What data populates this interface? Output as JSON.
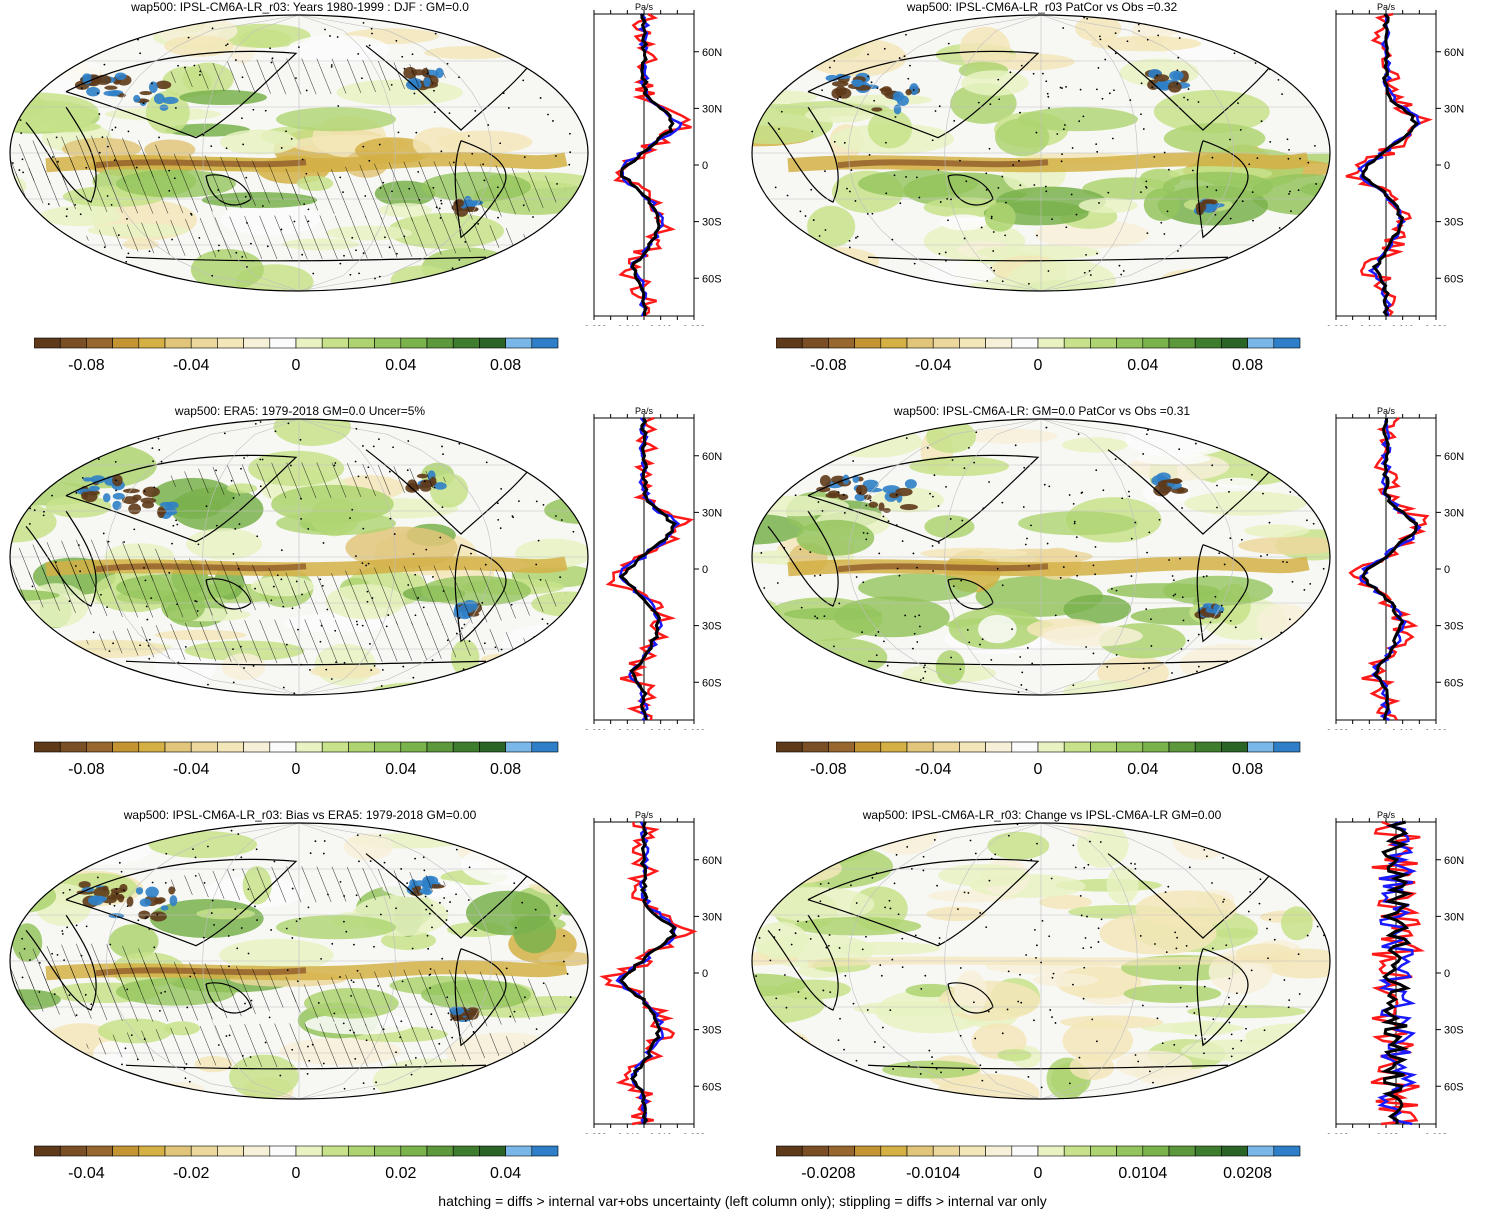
{
  "palette": [
    "#5e3a1a",
    "#7a4f25",
    "#98662f",
    "#c39431",
    "#d4b045",
    "#e0c57a",
    "#ecd89c",
    "#f3e6b8",
    "#f7f0d8",
    "#fbfbfb",
    "#e8f2c2",
    "#c7e28a",
    "#aed471",
    "#94c45d",
    "#7ab24c",
    "#5d983c",
    "#3f7d2e",
    "#2b6427",
    "#79b7e9",
    "#2f7fc8"
  ],
  "footer": "hatching = diffs > internal var+obs uncertainty (left column only); stippling = diffs > internal var only",
  "profile_common": {
    "units": "Pa/s",
    "lat_ticks": [
      "60N",
      "30N",
      "0",
      "30S",
      "60S"
    ]
  },
  "chart_data": [
    {
      "type": "heatmap",
      "id": "p1",
      "title": "wap500: IPSL-CM6A-LR_r03: Years 1980-1999 : DJF : GM=0.0",
      "colorbar_labels": [
        "-0.08",
        "-0.04",
        "0",
        "0.04",
        "0.08"
      ],
      "colorbar_range": [
        -0.1,
        0.1
      ],
      "hatching": true,
      "stippling": true,
      "profile": {
        "xlim": [
          -0.03,
          0.03
        ],
        "x_tick_labels": [
          "-0.030",
          "-0.010",
          "0.010",
          "0.030"
        ]
      }
    },
    {
      "type": "heatmap",
      "id": "p2",
      "title": "wap500: IPSL-CM6A-LR_r03 PatCor vs Obs =0.32",
      "colorbar_labels": [
        "-0.08",
        "-0.04",
        "0",
        "0.04",
        "0.08"
      ],
      "colorbar_range": [
        -0.1,
        0.1
      ],
      "hatching": false,
      "stippling": true,
      "profile": {
        "xlim": [
          -0.03,
          0.03
        ],
        "x_tick_labels": [
          "-0.030",
          "-0.010",
          "0.010",
          "0.030"
        ]
      }
    },
    {
      "type": "heatmap",
      "id": "p3",
      "title": "wap500: ERA5: 1979-2018 GM=0.0 Uncer=5%",
      "colorbar_labels": [
        "-0.08",
        "-0.04",
        "0",
        "0.04",
        "0.08"
      ],
      "colorbar_range": [
        -0.1,
        0.1
      ],
      "hatching": true,
      "stippling": true,
      "profile": {
        "xlim": [
          -0.03,
          0.03
        ],
        "x_tick_labels": [
          "-0.030",
          "-0.010",
          "0.010",
          "0.030"
        ]
      }
    },
    {
      "type": "heatmap",
      "id": "p4",
      "title": "wap500: IPSL-CM6A-LR: GM=0.0 PatCor vs Obs =0.31",
      "colorbar_labels": [
        "-0.08",
        "-0.04",
        "0",
        "0.04",
        "0.08"
      ],
      "colorbar_range": [
        -0.1,
        0.1
      ],
      "hatching": false,
      "stippling": true,
      "profile": {
        "xlim": [
          -0.03,
          0.03
        ],
        "x_tick_labels": [
          "-0.030",
          "-0.010",
          "0.010",
          "0.030"
        ]
      }
    },
    {
      "type": "heatmap",
      "id": "p5",
      "title": "wap500: IPSL-CM6A-LR_r03: Bias vs ERA5: 1979-2018 GM=0.00",
      "colorbar_labels": [
        "-0.04",
        "-0.02",
        "0",
        "0.02",
        "0.04"
      ],
      "colorbar_range": [
        -0.05,
        0.05
      ],
      "hatching": true,
      "stippling": true,
      "profile": {
        "xlim": [
          -0.03,
          0.03
        ],
        "x_tick_labels": [
          "-0.030",
          "-0.010",
          "0.010",
          "0.030"
        ]
      }
    },
    {
      "type": "heatmap",
      "id": "p6",
      "title": "wap500: IPSL-CM6A-LR_r03: Change vs IPSL-CM6A-LR GM=0.00",
      "colorbar_labels": [
        "-0.0208",
        "-0.0104",
        "0",
        "0.0104",
        "0.0208"
      ],
      "colorbar_range": [
        -0.026,
        0.026
      ],
      "hatching": false,
      "stippling": true,
      "profile": {
        "xlim": [
          -0.009,
          0.006
        ],
        "x_tick_labels": [
          "-0.009",
          "-0.003",
          "0.003"
        ]
      }
    }
  ]
}
